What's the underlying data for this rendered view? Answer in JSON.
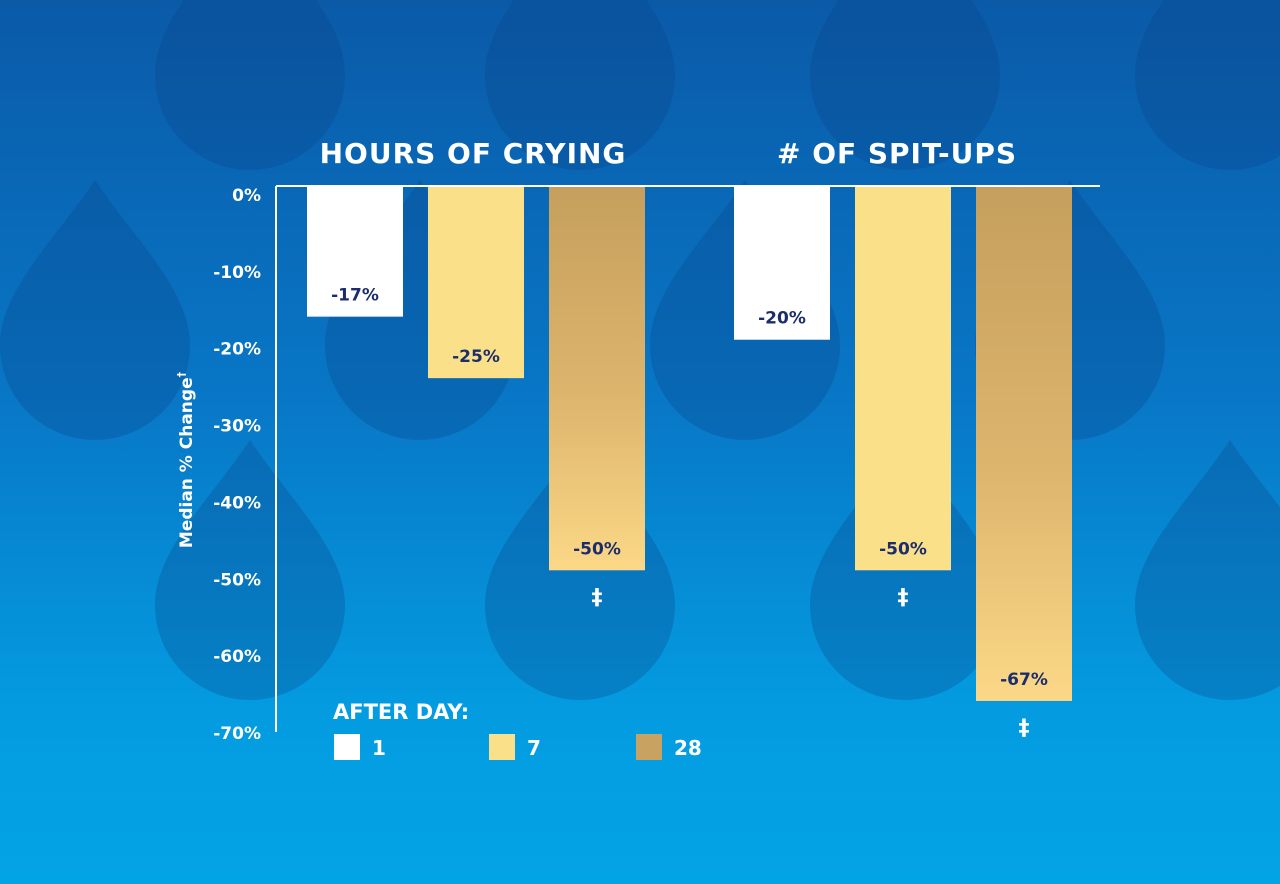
{
  "chart_data": {
    "type": "bar",
    "group_titles": [
      "HOURS OF CRYING",
      "# OF SPIT-UPS"
    ],
    "ylabel": "Median % Change",
    "ylabel_superscript": "†",
    "ylim": [
      -70,
      0
    ],
    "yticks": [
      0,
      -10,
      -20,
      -30,
      -40,
      -50,
      -60,
      -70
    ],
    "ytick_labels": [
      "0%",
      "-10%",
      "-20%",
      "-30%",
      "-40%",
      "-50%",
      "-60%",
      "-70%"
    ],
    "series": [
      {
        "name": "1",
        "values": [
          -17,
          -20
        ],
        "labels": [
          "-17%",
          "-20%"
        ],
        "color": "#ffffff"
      },
      {
        "name": "7",
        "values": [
          -25,
          -50
        ],
        "labels": [
          "-25%",
          "-50%"
        ],
        "color": "#fbe08a"
      },
      {
        "name": "28",
        "values": [
          -50,
          -67
        ],
        "labels": [
          "-50%",
          "-67%"
        ],
        "color": "#c7a260",
        "color_bottom": "#f9d786"
      }
    ],
    "annotations": [
      {
        "group": 0,
        "series": 2,
        "text": "‡"
      },
      {
        "group": 1,
        "series": 1,
        "text": "‡"
      },
      {
        "group": 1,
        "series": 2,
        "text": "‡"
      }
    ],
    "legend": {
      "title": "AFTER DAY:",
      "position": "bottom-left"
    },
    "grid": false
  },
  "colors": {
    "label_text": "#1b2d6b",
    "axis": "#ffffff"
  }
}
